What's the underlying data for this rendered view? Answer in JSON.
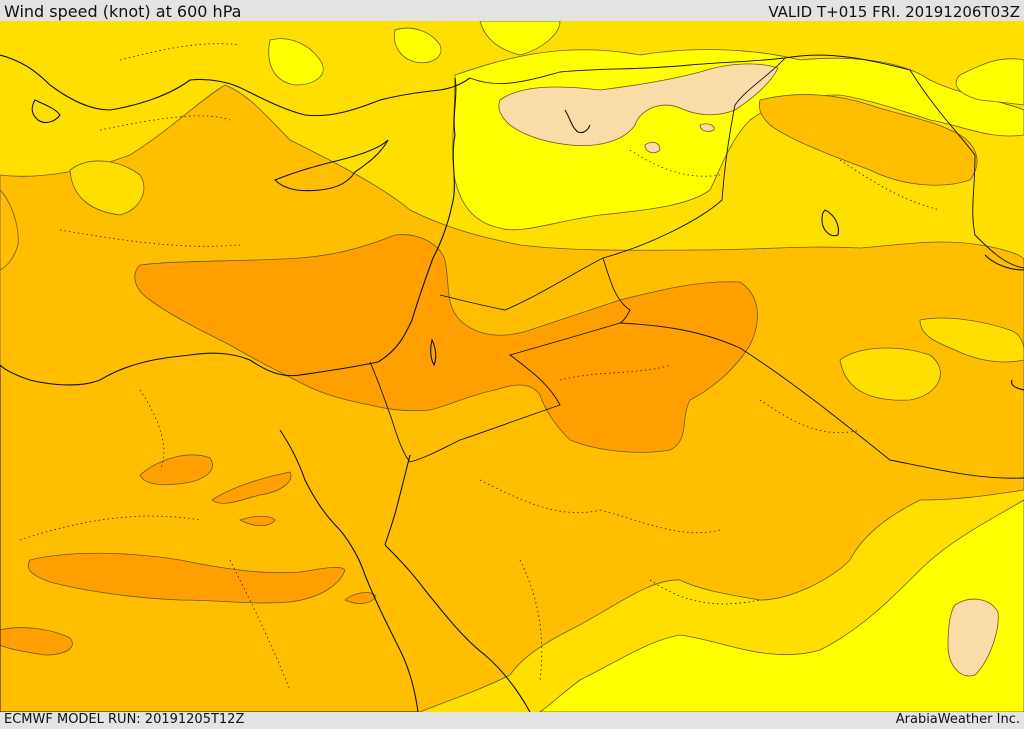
{
  "header": {
    "title": "Wind speed (knot) at 600 hPa",
    "valid": "VALID T+015 FRI. 20191206T03Z"
  },
  "footer": {
    "model_run": "ECMWF MODEL RUN: 20191205T12Z",
    "credit": "ArabiaWeather Inc."
  },
  "colors": {
    "band_lightest": "#f9dca8",
    "band_yellow": "#ffff00",
    "band_gold": "#ffdf00",
    "band_amber": "#ffbf00",
    "band_orange": "#ffa000",
    "contour_line": "#6b5a2a",
    "coastline": "#111111"
  }
}
